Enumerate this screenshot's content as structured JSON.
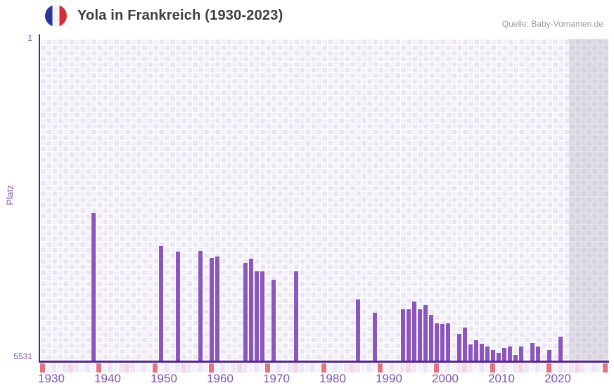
{
  "header": {
    "title": "Yola in Frankreich (1930-2023)",
    "flag_icon": "french-flag",
    "source": "Quelle: Baby-Vornamen.de"
  },
  "y_axis": {
    "label": "Platz",
    "top_tick": "1",
    "bottom_tick": "5531"
  },
  "x_axis": {
    "tick_years": [
      1930,
      1940,
      1950,
      1960,
      1970,
      1980,
      1990,
      2000,
      2010,
      2020
    ]
  },
  "chart_data": {
    "type": "bar",
    "title": "Yola in Frankreich (1930-2023)",
    "xlabel": "",
    "ylabel": "Platz",
    "x_range": [
      1928,
      2029
    ],
    "ylim": [
      1,
      5531
    ],
    "y_axis_inverted": true,
    "grid": true,
    "legend": "none",
    "years": [
      1937,
      1949,
      1952,
      1956,
      1958,
      1959,
      1964,
      1965,
      1966,
      1967,
      1969,
      1973,
      1984,
      1987,
      1992,
      1993,
      1994,
      1995,
      1996,
      1997,
      1998,
      1999,
      2000,
      2002,
      2003,
      2004,
      2005,
      2006,
      2007,
      2008,
      2009,
      2010,
      2011,
      2012,
      2013,
      2015,
      2016,
      2018,
      2020
    ],
    "ranks": [
      2995,
      3560,
      3660,
      3650,
      3770,
      3745,
      3855,
      3780,
      4000,
      4000,
      4145,
      4000,
      4480,
      4710,
      4650,
      4650,
      4515,
      4650,
      4575,
      4745,
      4890,
      4905,
      4890,
      5070,
      4965,
      5255,
      5180,
      5240,
      5290,
      5350,
      5400,
      5315,
      5290,
      5435,
      5290,
      5230,
      5290,
      5350,
      5120
    ],
    "shaded_future_band_years": [
      2022,
      2028
    ],
    "marker_red_years": [
      1928,
      1938,
      1948,
      1958,
      1968,
      1978,
      1988,
      1998,
      2008,
      2018,
      2028
    ],
    "marker_pink_years": [
      1933,
      1943,
      1953,
      1963,
      1973,
      1983,
      1993,
      2003,
      2013,
      2023
    ],
    "colors": {
      "bar": "#8c56c0",
      "axis": "#53278a",
      "axis_labels": "#7d55b8",
      "grid_cell_dark": "#eae5f3",
      "grid_cell_light": "#f3f0f9",
      "marker_red": "#e0757f",
      "marker_pink": "#f3d6de",
      "marker_neutral_dark": "#ece7f5",
      "marker_neutral_light": "#f5f2fa",
      "shaded_band": "rgba(168,162,182,0.30)",
      "flag_blue": "#27379b",
      "flag_white": "#f4f4f6",
      "flag_red": "#d92c38",
      "title_text": "#3d3d3d",
      "source_text": "#9b9b9b"
    }
  }
}
